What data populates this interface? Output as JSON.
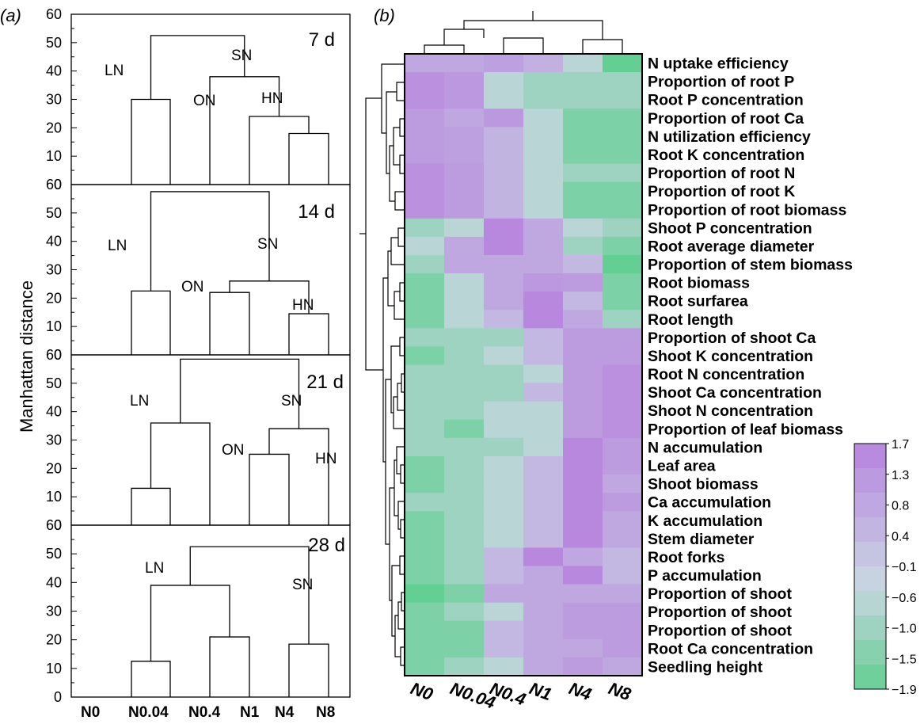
{
  "panel_a_label": "(a)",
  "panel_b_label": "(b)",
  "y_axis_label": "Manhattan distance",
  "x_categories": [
    "N0",
    "N0.04",
    "N0.4",
    "N1",
    "N4",
    "N8"
  ],
  "y_ticks": [
    "0",
    "10",
    "20",
    "30",
    "40",
    "50",
    "60"
  ],
  "colorbar_ticks": [
    "1.7",
    "1.3",
    "0.8",
    "0.4",
    "−0.1",
    "−0.6",
    "−1.0",
    "−1.5",
    "−1.9"
  ],
  "colors": {
    "low": "#63cf93",
    "mid": "#c9d6e2",
    "high": "#b784de",
    "line": "#000000"
  },
  "chart_data": [
    {
      "type": "dendrogram",
      "title": "7 d",
      "ylabel": "Manhattan distance",
      "ylim": [
        0,
        60
      ],
      "leaves": [
        "N0",
        "N0.04",
        "N0.4",
        "N1",
        "N4",
        "N8"
      ],
      "merges": [
        {
          "left": "N4",
          "right": "N8",
          "height": 18
        },
        {
          "left": "N1",
          "right": "N4+N8",
          "height": 24
        },
        {
          "left": "N0.4",
          "right": "N1+N4+N8",
          "height": 38
        },
        {
          "left": "N0",
          "right": "N0.04",
          "height": 30
        },
        {
          "left": "N0+N0.04",
          "right": "N0.4+N1+N4+N8",
          "height": 52.5
        }
      ],
      "annotations": [
        "LN",
        "SN",
        "ON",
        "HN"
      ]
    },
    {
      "type": "dendrogram",
      "title": "14 d",
      "ylabel": "Manhattan distance",
      "ylim": [
        0,
        60
      ],
      "leaves": [
        "N0",
        "N0.04",
        "N0.4",
        "N1",
        "N4",
        "N8"
      ],
      "merges": [
        {
          "left": "N0",
          "right": "N0.04",
          "height": 22.5
        },
        {
          "left": "N0.4",
          "right": "N1",
          "height": 22
        },
        {
          "left": "N4",
          "right": "N8",
          "height": 14.5
        },
        {
          "left": "N0.4+N1",
          "right": "N4+N8",
          "height": 26
        },
        {
          "left": "N0+N0.04",
          "right": "N0.4+N1+N4+N8",
          "height": 57.5
        }
      ],
      "annotations": [
        "LN",
        "SN",
        "ON",
        "HN"
      ]
    },
    {
      "type": "dendrogram",
      "title": "21 d",
      "ylabel": "Manhattan distance",
      "ylim": [
        0,
        60
      ],
      "leaves": [
        "N0",
        "N0.04",
        "N0.4",
        "N1",
        "N4",
        "N8"
      ],
      "merges": [
        {
          "left": "N0",
          "right": "N0.04",
          "height": 13
        },
        {
          "left": "N0+N0.04",
          "right": "N0.4",
          "height": 36
        },
        {
          "left": "N1",
          "right": "N4",
          "height": 25
        },
        {
          "left": "N1+N4",
          "right": "N8",
          "height": 34
        },
        {
          "left": "N0+N0.04+N0.4",
          "right": "N1+N4+N8",
          "height": 58.5
        }
      ],
      "annotations": [
        "LN",
        "SN",
        "ON",
        "HN"
      ]
    },
    {
      "type": "dendrogram",
      "title": "28 d",
      "ylabel": "Manhattan distance",
      "ylim": [
        0,
        60
      ],
      "leaves": [
        "N0",
        "N0.04",
        "N0.4",
        "N1",
        "N4",
        "N8"
      ],
      "merges": [
        {
          "left": "N0",
          "right": "N0.04",
          "height": 12.5
        },
        {
          "left": "N0.4",
          "right": "N1",
          "height": 21
        },
        {
          "left": "N0+N0.04",
          "right": "N0.4+N1",
          "height": 39
        },
        {
          "left": "N4",
          "right": "N8",
          "height": 18.5
        },
        {
          "left": "N0+N0.04+N0.4+N1",
          "right": "N4+N8",
          "height": 52.5
        }
      ],
      "annotations": [
        "LN",
        "SN"
      ]
    },
    {
      "type": "heatmap",
      "columns": [
        "N0",
        "N0.04",
        "N0.4",
        "N1",
        "N4",
        "N8"
      ],
      "color_scale": {
        "min": -1.9,
        "max": 1.7
      },
      "rows": [
        {
          "label": "N uptake efficiency",
          "values": [
            0.8,
            0.8,
            1.0,
            0.6,
            -0.6,
            -1.9
          ]
        },
        {
          "label": "Proportion of root P",
          "values": [
            1.4,
            1.2,
            -0.6,
            -1.0,
            -1.0,
            -1.0
          ]
        },
        {
          "label": "Root P concentration",
          "values": [
            1.4,
            1.2,
            -0.6,
            -1.0,
            -1.0,
            -1.0
          ]
        },
        {
          "label": "Proportion of root Ca",
          "values": [
            1.1,
            0.8,
            1.2,
            -0.6,
            -1.5,
            -1.5
          ]
        },
        {
          "label": "N utilization efficiency",
          "values": [
            1.1,
            1.0,
            0.5,
            -0.6,
            -1.5,
            -1.5
          ]
        },
        {
          "label": "Root K concentration",
          "values": [
            1.1,
            1.0,
            0.5,
            -0.6,
            -1.5,
            -1.5
          ]
        },
        {
          "label": "Proportion of root N",
          "values": [
            1.4,
            1.1,
            0.5,
            -0.6,
            -1.0,
            -1.0
          ]
        },
        {
          "label": "Proportion of root K",
          "values": [
            1.4,
            1.1,
            0.5,
            -0.6,
            -1.5,
            -1.5
          ]
        },
        {
          "label": "Proportion of root biomass",
          "values": [
            1.4,
            1.1,
            0.5,
            -0.6,
            -1.5,
            -1.5
          ]
        },
        {
          "label": "Shoot P concentration",
          "values": [
            -1.0,
            -0.6,
            1.6,
            0.8,
            -0.6,
            -1.0
          ]
        },
        {
          "label": "Root average diameter",
          "values": [
            -0.6,
            0.8,
            1.6,
            0.8,
            -1.0,
            -1.5
          ]
        },
        {
          "label": "Proportion of stem biomass",
          "values": [
            -1.0,
            0.8,
            0.8,
            0.8,
            0.4,
            -1.9
          ]
        },
        {
          "label": "Root biomass",
          "values": [
            -1.5,
            -0.6,
            0.8,
            1.2,
            1.1,
            -1.5
          ]
        },
        {
          "label": "Root surfarea",
          "values": [
            -1.5,
            -0.6,
            0.8,
            1.6,
            0.4,
            -1.5
          ]
        },
        {
          "label": "Root length",
          "values": [
            -1.5,
            -0.6,
            0.4,
            1.6,
            0.8,
            -1.0
          ]
        },
        {
          "label": "Proportion of shoot Ca",
          "values": [
            -1.0,
            -1.0,
            -1.0,
            0.4,
            1.1,
            1.1
          ]
        },
        {
          "label": "Shoot K concentration",
          "values": [
            -1.5,
            -1.0,
            -0.6,
            0.4,
            1.1,
            1.1
          ]
        },
        {
          "label": "Root N concentration",
          "values": [
            -1.0,
            -1.0,
            -1.0,
            -0.6,
            1.1,
            1.4
          ]
        },
        {
          "label": "Shoot Ca concentration",
          "values": [
            -1.0,
            -1.0,
            -1.0,
            0.4,
            1.1,
            1.4
          ]
        },
        {
          "label": "Shoot N concentration",
          "values": [
            -1.0,
            -1.0,
            -0.6,
            -0.6,
            1.1,
            1.4
          ]
        },
        {
          "label": "Proportion of leaf biomass",
          "values": [
            -1.0,
            -1.5,
            -0.6,
            -0.6,
            1.1,
            1.4
          ]
        },
        {
          "label": "N accumulation",
          "values": [
            -1.0,
            -1.0,
            -1.0,
            -0.6,
            1.6,
            1.1
          ]
        },
        {
          "label": "Leaf area",
          "values": [
            -1.5,
            -1.0,
            -0.6,
            0.4,
            1.6,
            1.1
          ]
        },
        {
          "label": "Shoot biomass",
          "values": [
            -1.5,
            -1.0,
            -0.6,
            0.4,
            1.6,
            0.8
          ]
        },
        {
          "label": "Ca accumulation",
          "values": [
            -1.0,
            -1.0,
            -0.6,
            0.4,
            1.6,
            1.1
          ]
        },
        {
          "label": "K accumulation",
          "values": [
            -1.5,
            -1.0,
            -0.6,
            0.4,
            1.6,
            0.8
          ]
        },
        {
          "label": "Stem diameter",
          "values": [
            -1.5,
            -1.0,
            -0.6,
            0.4,
            1.6,
            0.8
          ]
        },
        {
          "label": "Root forks",
          "values": [
            -1.5,
            -1.0,
            0.4,
            1.6,
            0.8,
            0.4
          ]
        },
        {
          "label": "P accumulation",
          "values": [
            -1.5,
            -1.0,
            0.4,
            0.8,
            1.6,
            0.4
          ]
        },
        {
          "label": "Proportion of shoot",
          "values": [
            -1.9,
            -1.5,
            0.8,
            0.8,
            0.8,
            0.8
          ]
        },
        {
          "label": "Proportion of shoot",
          "values": [
            -1.5,
            -1.0,
            -0.6,
            0.8,
            1.1,
            1.1
          ]
        },
        {
          "label": "Proportion of shoot",
          "values": [
            -1.5,
            -1.5,
            0.4,
            0.8,
            1.1,
            1.1
          ]
        },
        {
          "label": "Root Ca concentration",
          "values": [
            -1.5,
            -1.5,
            0.4,
            0.8,
            0.8,
            1.1
          ]
        },
        {
          "label": "Seedling height",
          "values": [
            -1.5,
            -1.0,
            -0.6,
            0.8,
            1.1,
            0.8
          ]
        }
      ]
    }
  ]
}
